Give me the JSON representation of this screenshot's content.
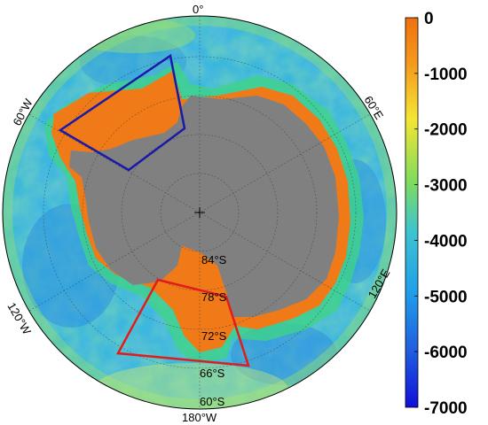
{
  "map": {
    "projection": "south-polar-stereographic",
    "variable": "bathymetry (m)",
    "longitude_labels": [
      "0°",
      "60°E",
      "120°E",
      "180°W",
      "120°W",
      "60°W"
    ],
    "latitude_labels": [
      "84°S",
      "78°S",
      "72°S",
      "66°S",
      "60°S"
    ],
    "regions": [
      {
        "name": "weddell-sea-box",
        "color": "#1a1aaa"
      },
      {
        "name": "ross-sea-box",
        "color": "#e01c1c"
      }
    ],
    "land_color": "#808080"
  },
  "colorbar": {
    "ticks": [
      "0",
      "-1000",
      "-2000",
      "-3000",
      "-4000",
      "-5000",
      "-6000",
      "-7000"
    ],
    "range": [
      -7000,
      0
    ],
    "colors": [
      "#f07010",
      "#f6a020",
      "#f4e634",
      "#7fdc5c",
      "#3cc4d0",
      "#20a0e8",
      "#2060e0",
      "#1010d8"
    ]
  }
}
